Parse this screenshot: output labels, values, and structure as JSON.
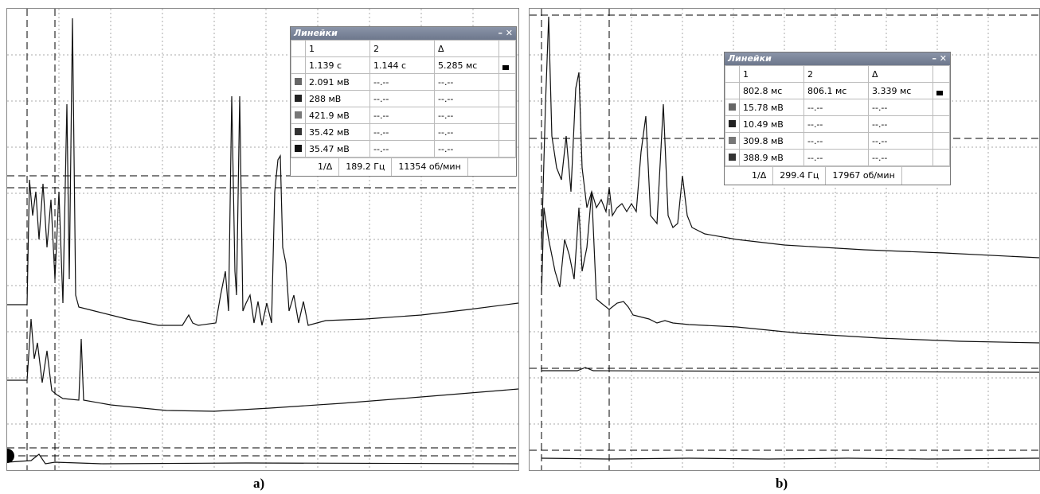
{
  "panels": [
    {
      "caption": "a)",
      "cursor_panel": {
        "title": "Линейки",
        "header": [
          "1",
          "2",
          "Δ"
        ],
        "time_row": [
          "1.139 с",
          "1.144 с",
          "5.285 мс"
        ],
        "channel_rows": [
          [
            "2.091 мВ",
            "--.--",
            "--.--"
          ],
          [
            "288 мВ",
            "--.--",
            "--.--"
          ],
          [
            "421.9 мВ",
            "--.--",
            "--.--"
          ],
          [
            "35.42 мВ",
            "--.--",
            "--.--"
          ],
          [
            "35.47 мВ",
            "--.--",
            "--.--"
          ]
        ],
        "footer": [
          "1/Δ",
          "189.2 Гц",
          "11354 об/мин"
        ]
      }
    },
    {
      "caption": "b)",
      "cursor_panel": {
        "title": "Линейки",
        "header": [
          "1",
          "2",
          "Δ"
        ],
        "time_row": [
          "802.8 мс",
          "806.1 мс",
          "3.339 мс"
        ],
        "channel_rows": [
          [
            "15.78 мВ",
            "--.--",
            "--.--"
          ],
          [
            "10.49 мВ",
            "--.--",
            "--.--"
          ],
          [
            "309.8 мВ",
            "--.--",
            "--.--"
          ],
          [
            "388.9 мВ",
            "--.--",
            "--.--"
          ]
        ],
        "footer": [
          "1/Δ",
          "299.4 Гц",
          "17967 об/мин"
        ]
      }
    }
  ]
}
